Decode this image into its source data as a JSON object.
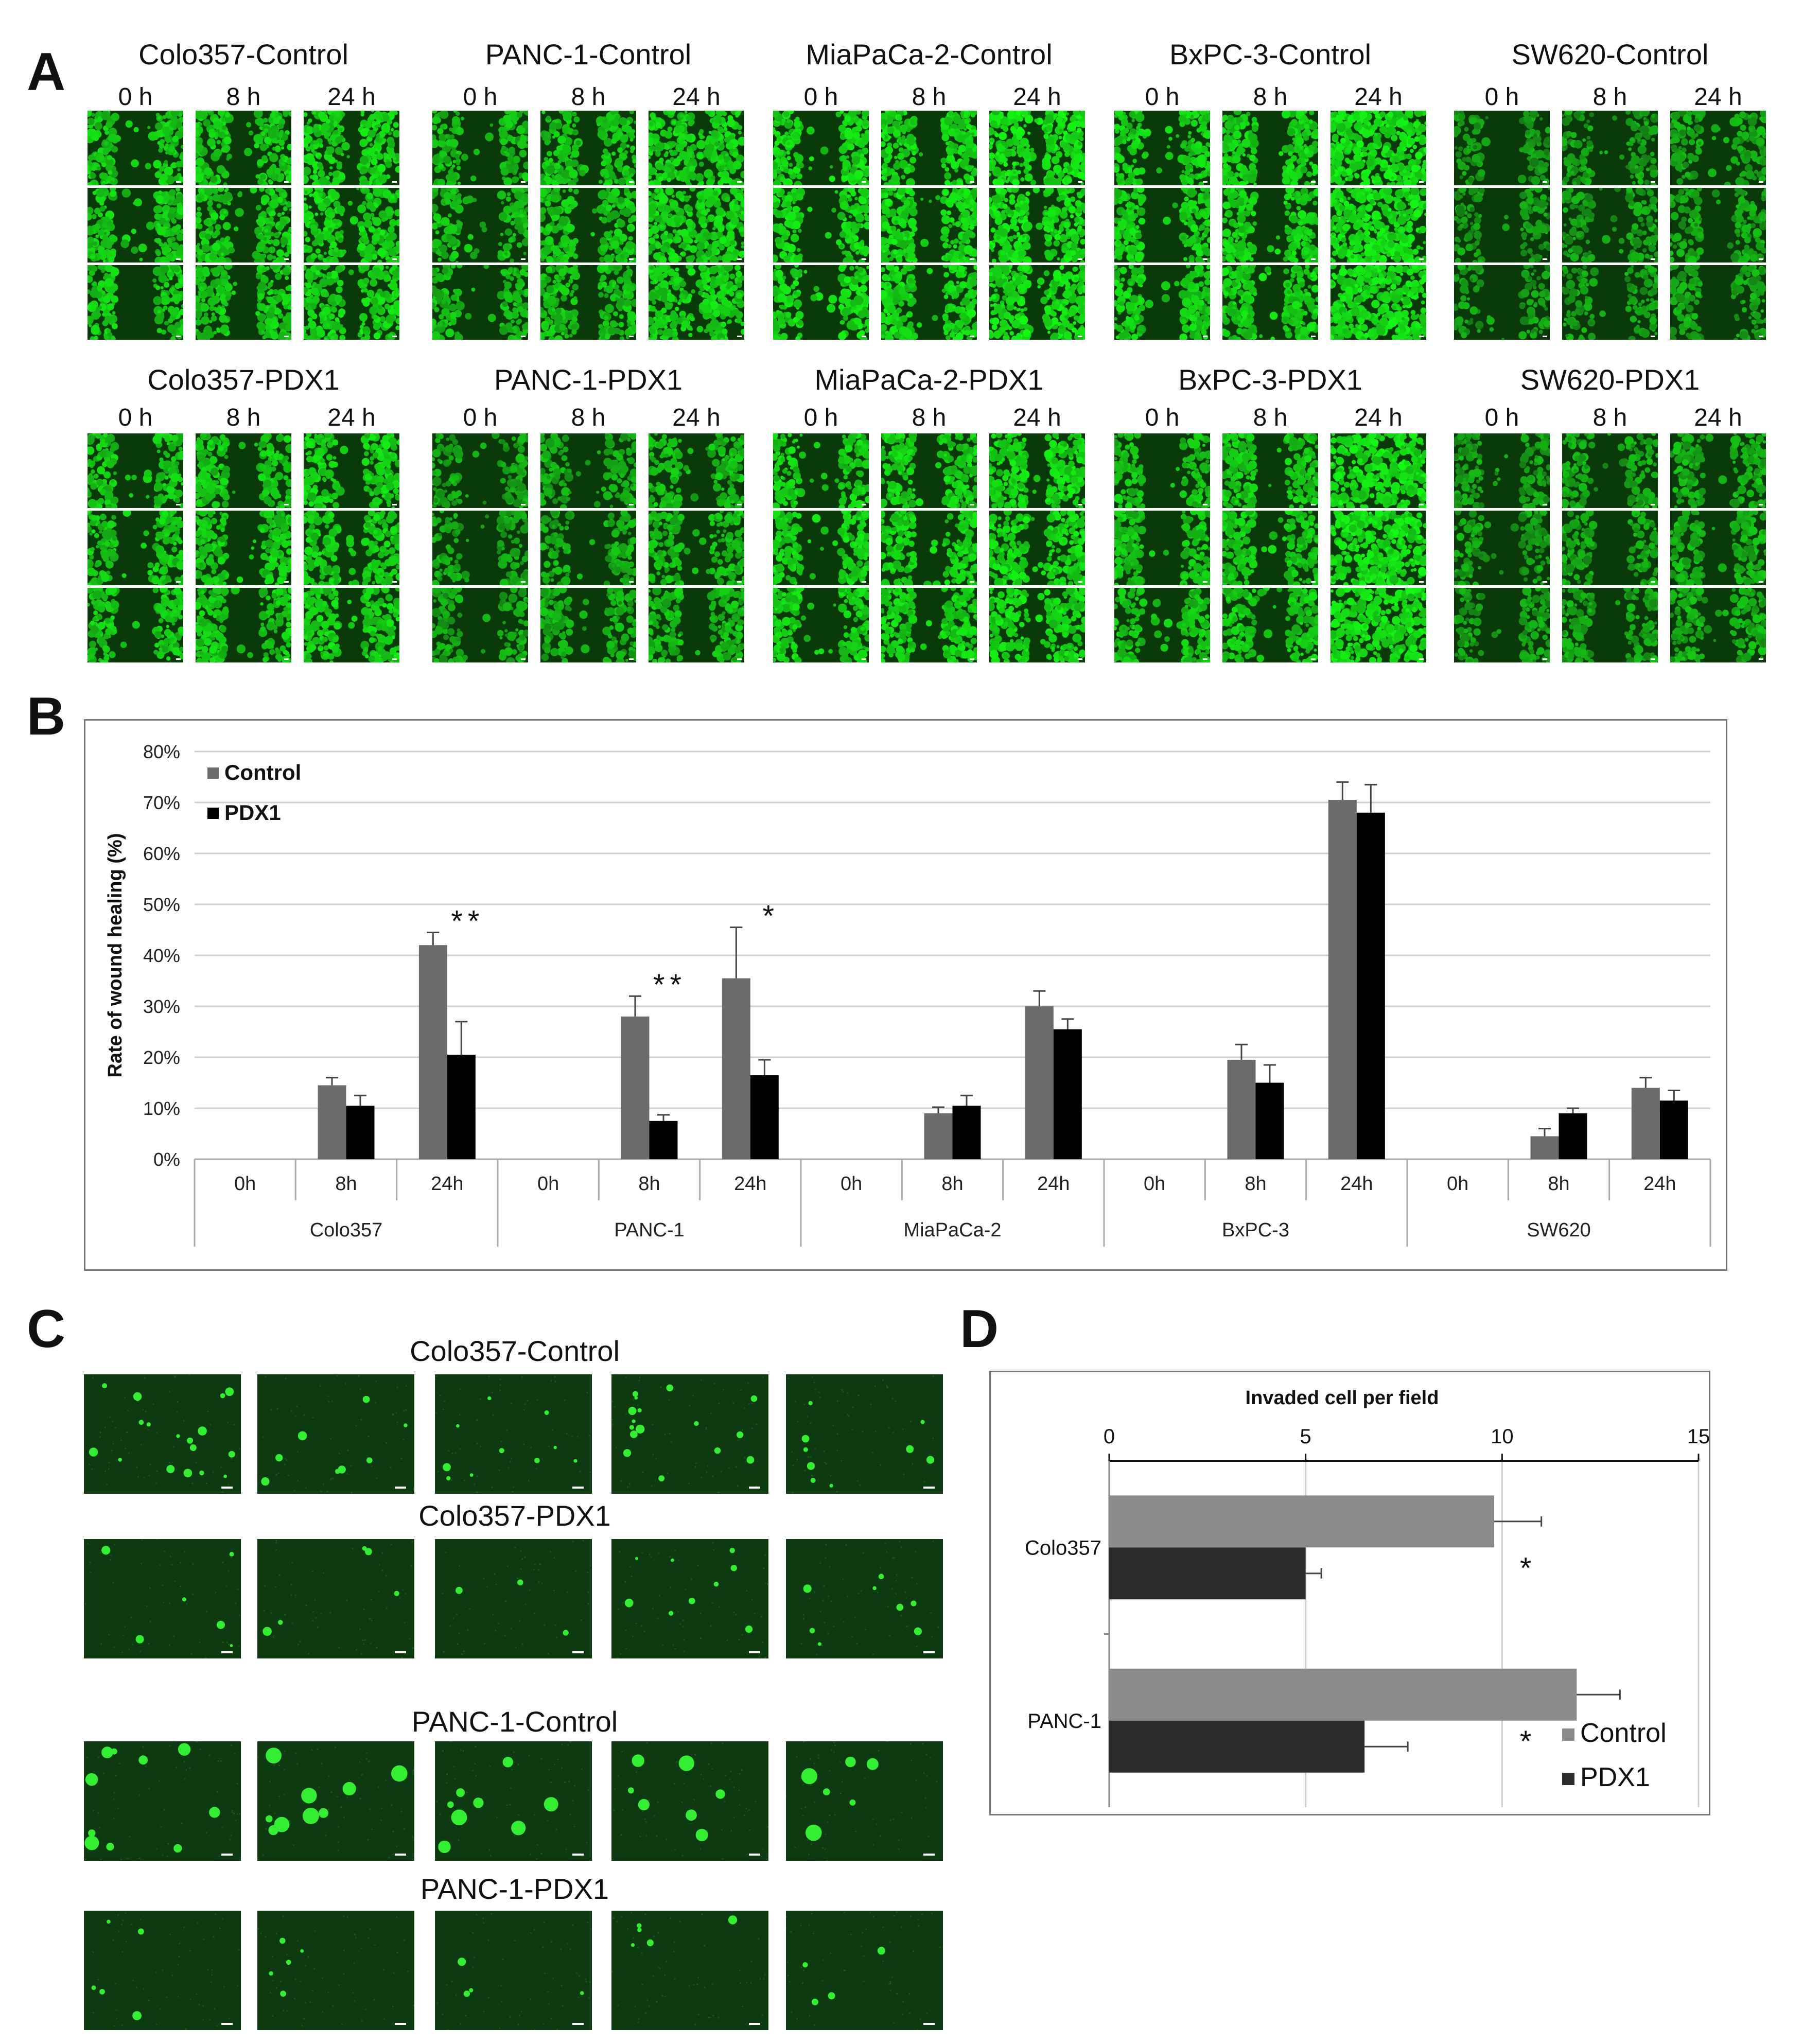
{
  "panels": {
    "a": {
      "letter": "A"
    },
    "b": {
      "letter": "B"
    },
    "c": {
      "letter": "C"
    },
    "d": {
      "letter": "D"
    }
  },
  "wound_groups": [
    {
      "title": "Colo357-Control",
      "times": [
        "0 h",
        "8 h",
        "24 h"
      ],
      "gap": [
        1,
        0.7,
        0.45
      ],
      "density": [
        0.8,
        0.8,
        0.85
      ]
    },
    {
      "title": "PANC-1-Control",
      "times": [
        "0 h",
        "8 h",
        "24 h"
      ],
      "gap": [
        1,
        0.6,
        0.15
      ],
      "density": [
        0.7,
        0.75,
        0.85
      ]
    },
    {
      "title": "MiaPaCa-2-Control",
      "times": [
        "0 h",
        "8 h",
        "24 h"
      ],
      "gap": [
        1,
        0.7,
        0.4
      ],
      "density": [
        0.9,
        0.9,
        0.95
      ]
    },
    {
      "title": "BxPC-3-Control",
      "times": [
        "0 h",
        "8 h",
        "24 h"
      ],
      "gap": [
        1,
        0.75,
        0.0
      ],
      "density": [
        0.85,
        0.85,
        0.95
      ]
    },
    {
      "title": "SW620-Control",
      "times": [
        "0 h",
        "8 h",
        "24 h"
      ],
      "gap": [
        1,
        0.9,
        0.8
      ],
      "density": [
        0.45,
        0.5,
        0.55
      ]
    },
    {
      "title": "Colo357-PDX1",
      "times": [
        "0 h",
        "8 h",
        "24 h"
      ],
      "gap": [
        1,
        0.85,
        0.65
      ],
      "density": [
        0.8,
        0.8,
        0.85
      ]
    },
    {
      "title": "PANC-1-PDX1",
      "times": [
        "0 h",
        "8 h",
        "24 h"
      ],
      "gap": [
        1,
        0.9,
        0.75
      ],
      "density": [
        0.55,
        0.6,
        0.7
      ]
    },
    {
      "title": "MiaPaCa-2-PDX1",
      "times": [
        "0 h",
        "8 h",
        "24 h"
      ],
      "gap": [
        1,
        0.75,
        0.5
      ],
      "density": [
        0.85,
        0.85,
        0.9
      ]
    },
    {
      "title": "BxPC-3-PDX1",
      "times": [
        "0 h",
        "8 h",
        "24 h"
      ],
      "gap": [
        1,
        0.8,
        0.0
      ],
      "density": [
        0.75,
        0.8,
        0.95
      ]
    },
    {
      "title": "SW620-PDX1",
      "times": [
        "0 h",
        "8 h",
        "24 h"
      ],
      "gap": [
        1,
        0.85,
        0.75
      ],
      "density": [
        0.5,
        0.55,
        0.6
      ]
    }
  ],
  "invasion_groups": [
    {
      "title": "Colo357-Control",
      "cells": [
        18,
        8,
        10,
        16,
        9
      ]
    },
    {
      "title": "Colo357-PDX1",
      "cells": [
        6,
        5,
        3,
        9,
        8
      ]
    },
    {
      "title": "PANC-1-Control",
      "cells": [
        10,
        9,
        8,
        7,
        6
      ]
    },
    {
      "title": "PANC-1-PDX1",
      "cells": [
        5,
        5,
        4,
        5,
        4
      ]
    }
  ],
  "chart_data": [
    {
      "type": "bar",
      "panel": "B",
      "ylabel": "Rate of wound healing (%)",
      "y_ticks": [
        "0%",
        "10%",
        "20%",
        "30%",
        "40%",
        "50%",
        "60%",
        "70%",
        "80%"
      ],
      "ylim": [
        0,
        80
      ],
      "grid": true,
      "legend_position": "top-left",
      "groups": [
        "Colo357",
        "PANC-1",
        "MiaPaCa-2",
        "BxPC-3",
        "SW620"
      ],
      "categories": [
        "0h",
        "8h",
        "24h"
      ],
      "series": [
        {
          "name": "Control",
          "color": "#6b6b6b",
          "values": [
            [
              0,
              14.5,
              42
            ],
            [
              0,
              28,
              35.5
            ],
            [
              0,
              9,
              30
            ],
            [
              0,
              19.5,
              70.5
            ],
            [
              0,
              4.5,
              14
            ]
          ],
          "errors": [
            [
              0,
              1.5,
              2.5
            ],
            [
              0,
              4,
              10
            ],
            [
              0,
              1.2,
              3
            ],
            [
              0,
              3,
              3.5
            ],
            [
              0,
              1.5,
              2
            ]
          ]
        },
        {
          "name": "PDX1",
          "color": "#000000",
          "values": [
            [
              0,
              10.5,
              20.5
            ],
            [
              0,
              7.5,
              16.5
            ],
            [
              0,
              10.5,
              25.5
            ],
            [
              0,
              15,
              68
            ],
            [
              0,
              9,
              11.5
            ]
          ],
          "errors": [
            [
              0,
              2,
              6.5
            ],
            [
              0,
              1.2,
              3
            ],
            [
              0,
              2,
              2
            ],
            [
              0,
              3.5,
              5.5
            ],
            [
              0,
              1,
              2
            ]
          ]
        }
      ],
      "annotations": [
        {
          "group": 0,
          "category": 2,
          "text": "**"
        },
        {
          "group": 1,
          "category": 1,
          "text": "**"
        },
        {
          "group": 1,
          "category": 2,
          "text": "*"
        }
      ]
    },
    {
      "type": "bar",
      "orientation": "horizontal",
      "panel": "D",
      "xlabel": "Invaded cell per field",
      "x_ticks": [
        "0",
        "5",
        "10",
        "15"
      ],
      "xlim": [
        0,
        15
      ],
      "grid": true,
      "legend_position": "bottom-right",
      "categories": [
        "Colo357",
        "PANC-1"
      ],
      "series": [
        {
          "name": "Control",
          "color": "#8c8c8c",
          "values": [
            9.8,
            11.9
          ],
          "errors": [
            1.2,
            1.1
          ]
        },
        {
          "name": "PDX1",
          "color": "#2b2b2b",
          "values": [
            5.0,
            6.5
          ],
          "errors": [
            0.4,
            1.1
          ]
        }
      ],
      "annotations": [
        {
          "category": 0,
          "text": "*"
        },
        {
          "category": 1,
          "text": "*"
        }
      ]
    }
  ]
}
